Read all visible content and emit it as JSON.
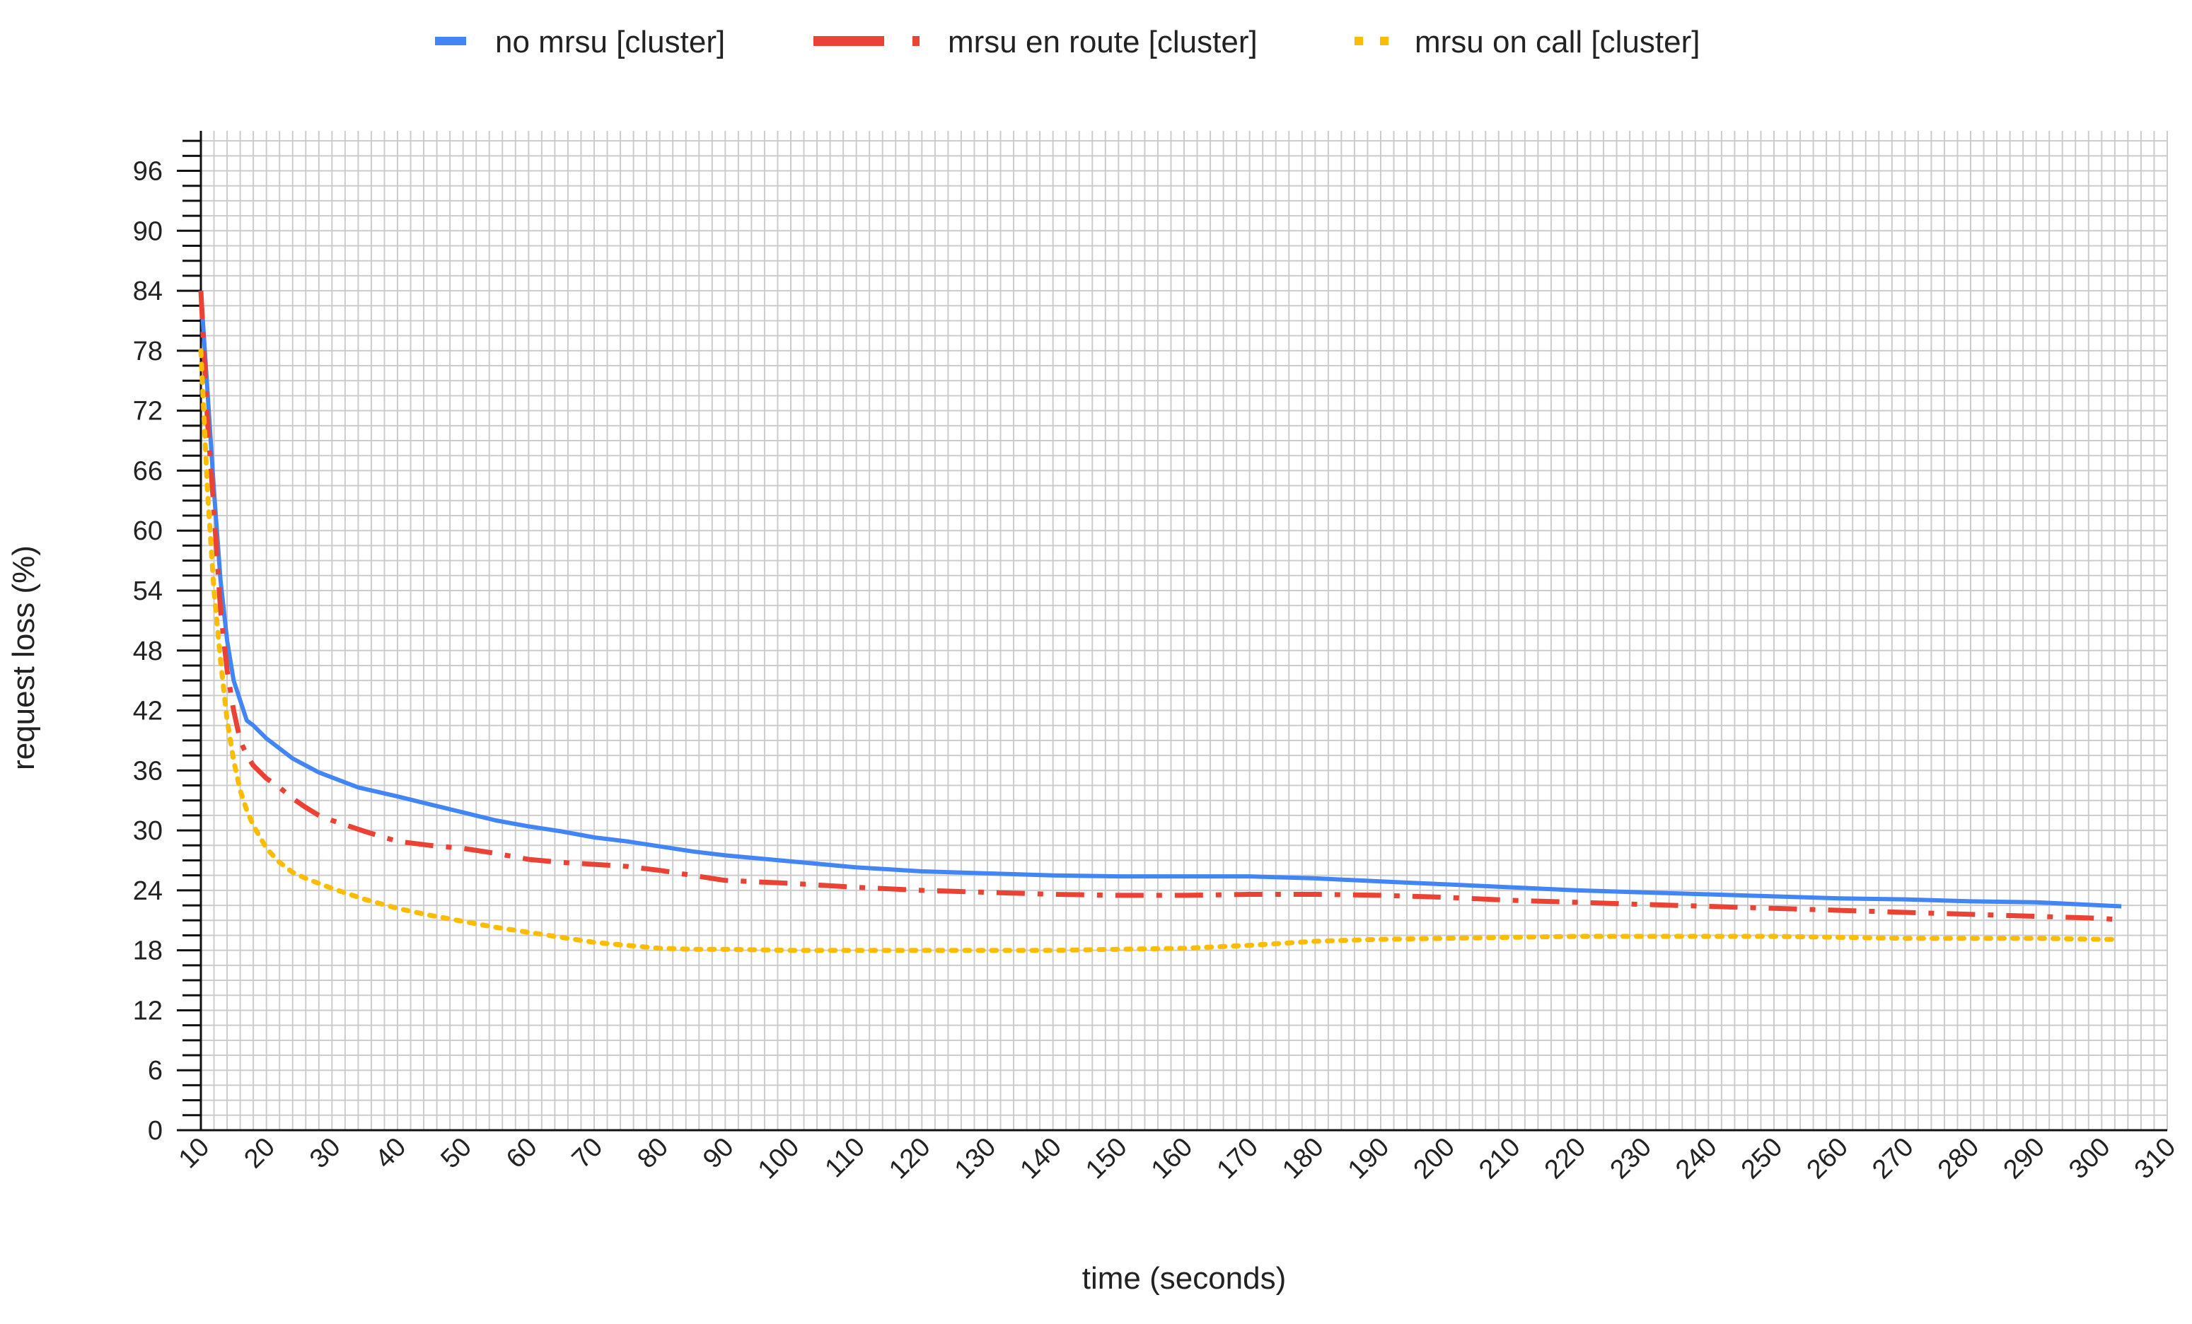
{
  "chart_data": {
    "type": "line",
    "title": "",
    "xlabel": "time (seconds)",
    "ylabel": "request loss (%)",
    "xlim": [
      10,
      310
    ],
    "ylim": [
      0,
      100
    ],
    "x_ticks": [
      10,
      20,
      30,
      40,
      50,
      60,
      70,
      80,
      90,
      100,
      110,
      120,
      130,
      140,
      150,
      160,
      170,
      180,
      190,
      200,
      210,
      220,
      230,
      240,
      250,
      260,
      270,
      280,
      290,
      300,
      310
    ],
    "x_tick_labels": [
      "10",
      "20",
      "30",
      "40",
      "50",
      "60",
      "70",
      "80",
      "90",
      "100",
      "110",
      "120",
      "130",
      "140",
      "150",
      "160",
      "170",
      "180",
      "190",
      "200",
      "210",
      "220",
      "230",
      "240",
      "250",
      "260",
      "270",
      "280",
      "290",
      "300",
      "310"
    ],
    "y_ticks": [
      0,
      6,
      12,
      18,
      24,
      30,
      36,
      42,
      48,
      54,
      60,
      66,
      72,
      78,
      84,
      90,
      96
    ],
    "y_tick_labels": [
      "0",
      "6",
      "12",
      "18",
      "24",
      "30",
      "36",
      "42",
      "48",
      "54",
      "60",
      "66",
      "72",
      "78",
      "84",
      "90",
      "96"
    ],
    "grid": true,
    "legend_position": "top-center",
    "series": [
      {
        "name": "no mrsu [cluster]",
        "color": "#4285F4",
        "style": "solid",
        "x": [
          10,
          11,
          12,
          13,
          14,
          15,
          16,
          17,
          18,
          20,
          22,
          24,
          26,
          28,
          30,
          32,
          34,
          36,
          40,
          45,
          50,
          55,
          60,
          65,
          70,
          75,
          80,
          85,
          90,
          100,
          110,
          120,
          130,
          140,
          150,
          160,
          170,
          180,
          190,
          200,
          210,
          220,
          230,
          240,
          250,
          260,
          270,
          280,
          290,
          300,
          303
        ],
        "y": [
          84,
          74,
          64,
          55,
          49,
          45,
          43,
          41,
          40.5,
          39.2,
          38.2,
          37.2,
          36.5,
          35.8,
          35.3,
          34.8,
          34.3,
          34.0,
          33.4,
          32.6,
          31.8,
          31.0,
          30.4,
          29.9,
          29.3,
          28.9,
          28.4,
          27.9,
          27.5,
          26.9,
          26.3,
          25.9,
          25.7,
          25.5,
          25.4,
          25.4,
          25.4,
          25.2,
          24.9,
          24.6,
          24.3,
          24.0,
          23.8,
          23.6,
          23.4,
          23.2,
          23.1,
          22.9,
          22.8,
          22.5,
          22.4
        ]
      },
      {
        "name": "mrsu en route [cluster]",
        "color": "#EA4335",
        "style": "dash-dot",
        "x": [
          10,
          11,
          12,
          13,
          14,
          15,
          16,
          17,
          18,
          20,
          22,
          24,
          26,
          28,
          30,
          35,
          40,
          45,
          50,
          55,
          60,
          65,
          70,
          75,
          80,
          85,
          90,
          100,
          110,
          120,
          130,
          140,
          150,
          160,
          170,
          180,
          190,
          200,
          210,
          220,
          230,
          240,
          250,
          260,
          270,
          280,
          290,
          300,
          302
        ],
        "y": [
          84,
          71,
          62,
          52,
          46,
          42,
          39,
          37.5,
          36.5,
          35.2,
          34.3,
          33.2,
          32.3,
          31.5,
          31.0,
          29.9,
          28.9,
          28.5,
          28.2,
          27.7,
          27.1,
          26.8,
          26.6,
          26.4,
          26.0,
          25.5,
          25.0,
          24.7,
          24.3,
          24.0,
          23.8,
          23.6,
          23.5,
          23.5,
          23.6,
          23.6,
          23.5,
          23.3,
          23.0,
          22.8,
          22.6,
          22.4,
          22.2,
          22.0,
          21.8,
          21.6,
          21.4,
          21.2,
          21.1
        ]
      },
      {
        "name": "mrsu on call [cluster]",
        "color": "#FBBC04",
        "style": "dotted",
        "x": [
          10,
          11,
          12,
          13,
          14,
          15,
          16,
          17,
          18,
          20,
          22,
          24,
          26,
          28,
          30,
          35,
          40,
          45,
          50,
          55,
          60,
          65,
          70,
          75,
          80,
          85,
          90,
          100,
          110,
          120,
          130,
          140,
          150,
          160,
          170,
          180,
          190,
          200,
          210,
          220,
          230,
          240,
          250,
          260,
          270,
          280,
          290,
          300,
          302
        ],
        "y": [
          78,
          64,
          54,
          47,
          41,
          37,
          34,
          32,
          30.5,
          28.2,
          26.8,
          25.8,
          25.2,
          24.7,
          24.2,
          23.1,
          22.2,
          21.5,
          20.9,
          20.3,
          19.8,
          19.3,
          18.8,
          18.5,
          18.2,
          18.1,
          18.1,
          18.0,
          18.0,
          18.0,
          18.0,
          18.0,
          18.1,
          18.2,
          18.5,
          18.9,
          19.1,
          19.2,
          19.3,
          19.4,
          19.4,
          19.4,
          19.4,
          19.3,
          19.2,
          19.2,
          19.2,
          19.1,
          19.1
        ]
      }
    ]
  }
}
